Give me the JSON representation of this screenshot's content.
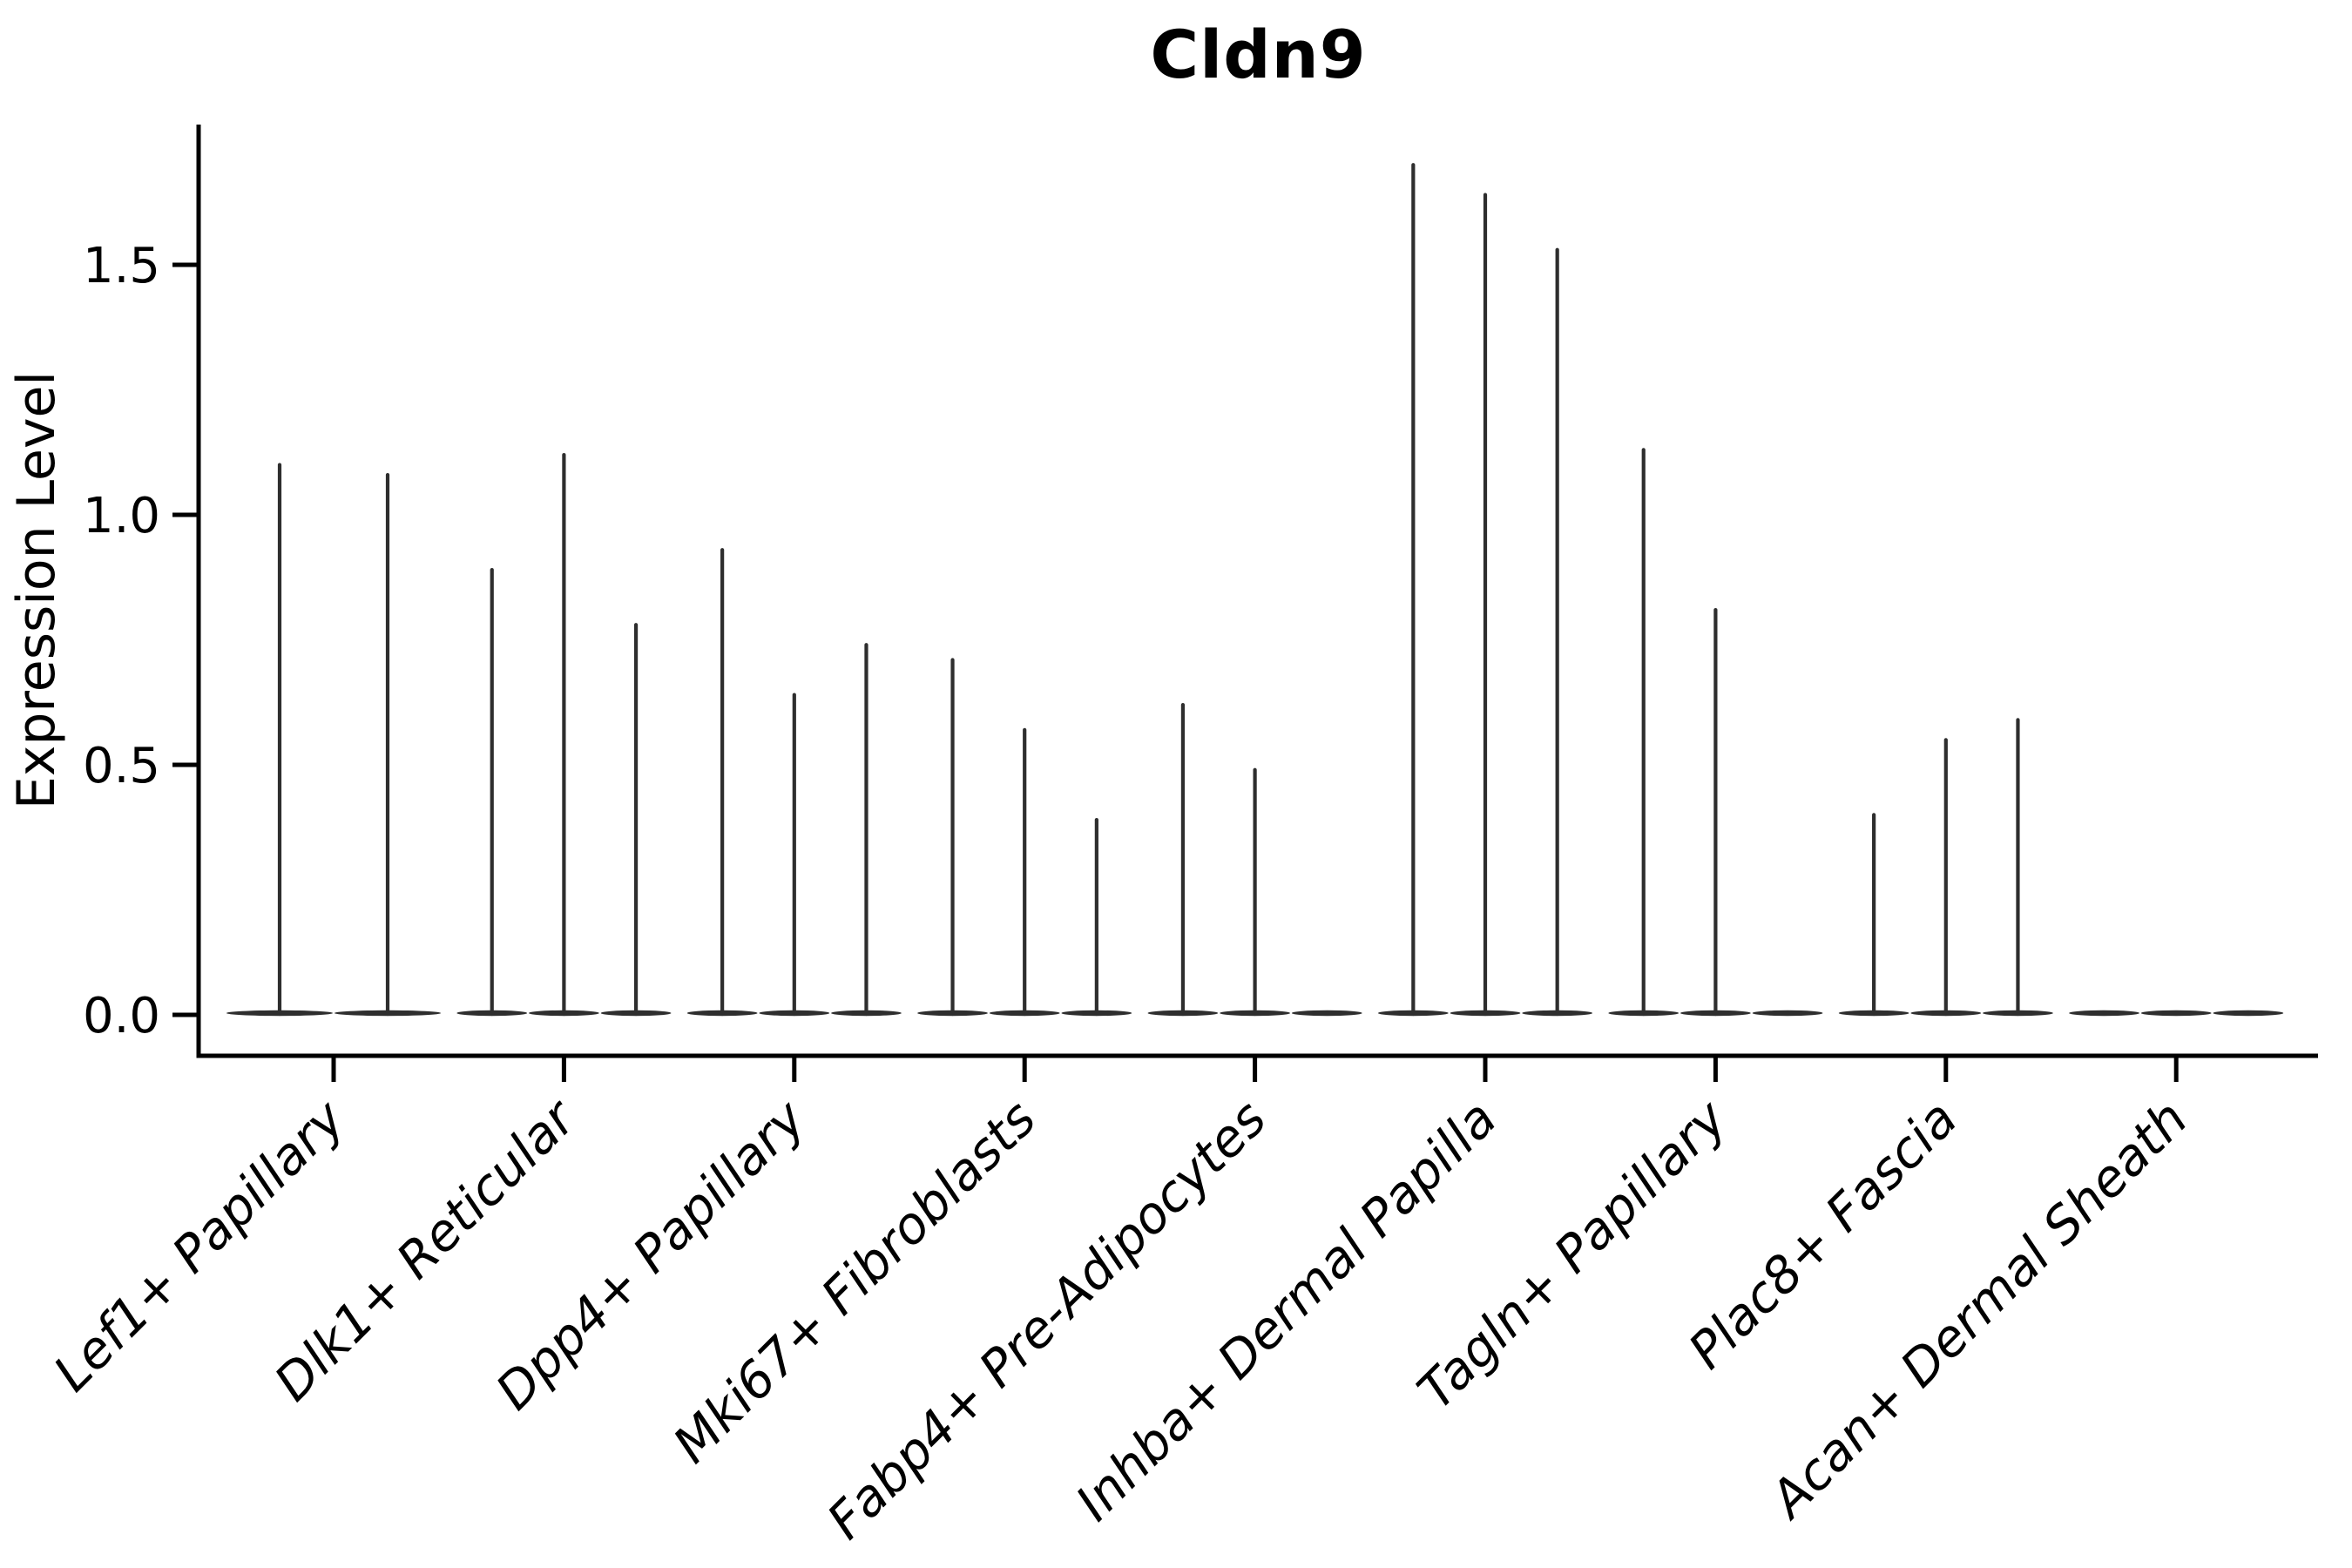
{
  "chart_data": {
    "type": "violin",
    "title": "Cldn9",
    "xlabel": "",
    "ylabel": "Expression Level",
    "yticks": [
      0.0,
      0.5,
      1.0,
      1.5
    ],
    "ytick_labels": [
      "0.0",
      "0.5",
      "1.0",
      "1.5"
    ],
    "ylim": [
      -0.08,
      1.78
    ],
    "grid": false,
    "legend": null,
    "x_tick_rotation": 45,
    "categories": [
      "Lef1+ Papillary",
      "Dlk1+ Reticular",
      "Dpp4+ Papillary",
      "Mki67+ Fibroblasts",
      "Fabp4+ Pre-Adipocytes",
      "Inhba+ Dermal Papilla",
      "Tagln+ Papillary",
      "Plac8+ Fascia",
      "Acan+ Dermal Sheath"
    ],
    "groups": [
      {
        "label": "Lef1+ Papillary",
        "violin_peaks": [
          1.1,
          1.08
        ]
      },
      {
        "label": "Dlk1+ Reticular",
        "violin_peaks": [
          0.89,
          1.12,
          0.78
        ]
      },
      {
        "label": "Dpp4+ Papillary",
        "violin_peaks": [
          0.93,
          0.64,
          0.74
        ]
      },
      {
        "label": "Mki67+ Fibroblasts",
        "violin_peaks": [
          0.71,
          0.57,
          0.39
        ]
      },
      {
        "label": "Fabp4+ Pre-Adipocytes",
        "violin_peaks": [
          0.62,
          0.49,
          0.0
        ]
      },
      {
        "label": "Inhba+ Dermal Papilla",
        "violin_peaks": [
          1.7,
          1.64,
          1.53
        ]
      },
      {
        "label": "Tagln+ Papillary",
        "violin_peaks": [
          1.13,
          0.81,
          0.0
        ]
      },
      {
        "label": "Plac8+ Fascia",
        "violin_peaks": [
          0.4,
          0.55,
          0.59
        ]
      },
      {
        "label": "Acan+ Dermal Sheath",
        "violin_peaks": [
          0.0,
          0.0,
          0.0
        ]
      }
    ],
    "description": "Violin plot of Cldn9 expression; each cluster shows narrow zero-inflated violins (flat base at 0 with a thin density spike up to the listed peak expression level).",
    "colors": {
      "violin": "#2e2e2e",
      "axis": "#000000",
      "text": "#000000",
      "background": "#ffffff"
    }
  }
}
